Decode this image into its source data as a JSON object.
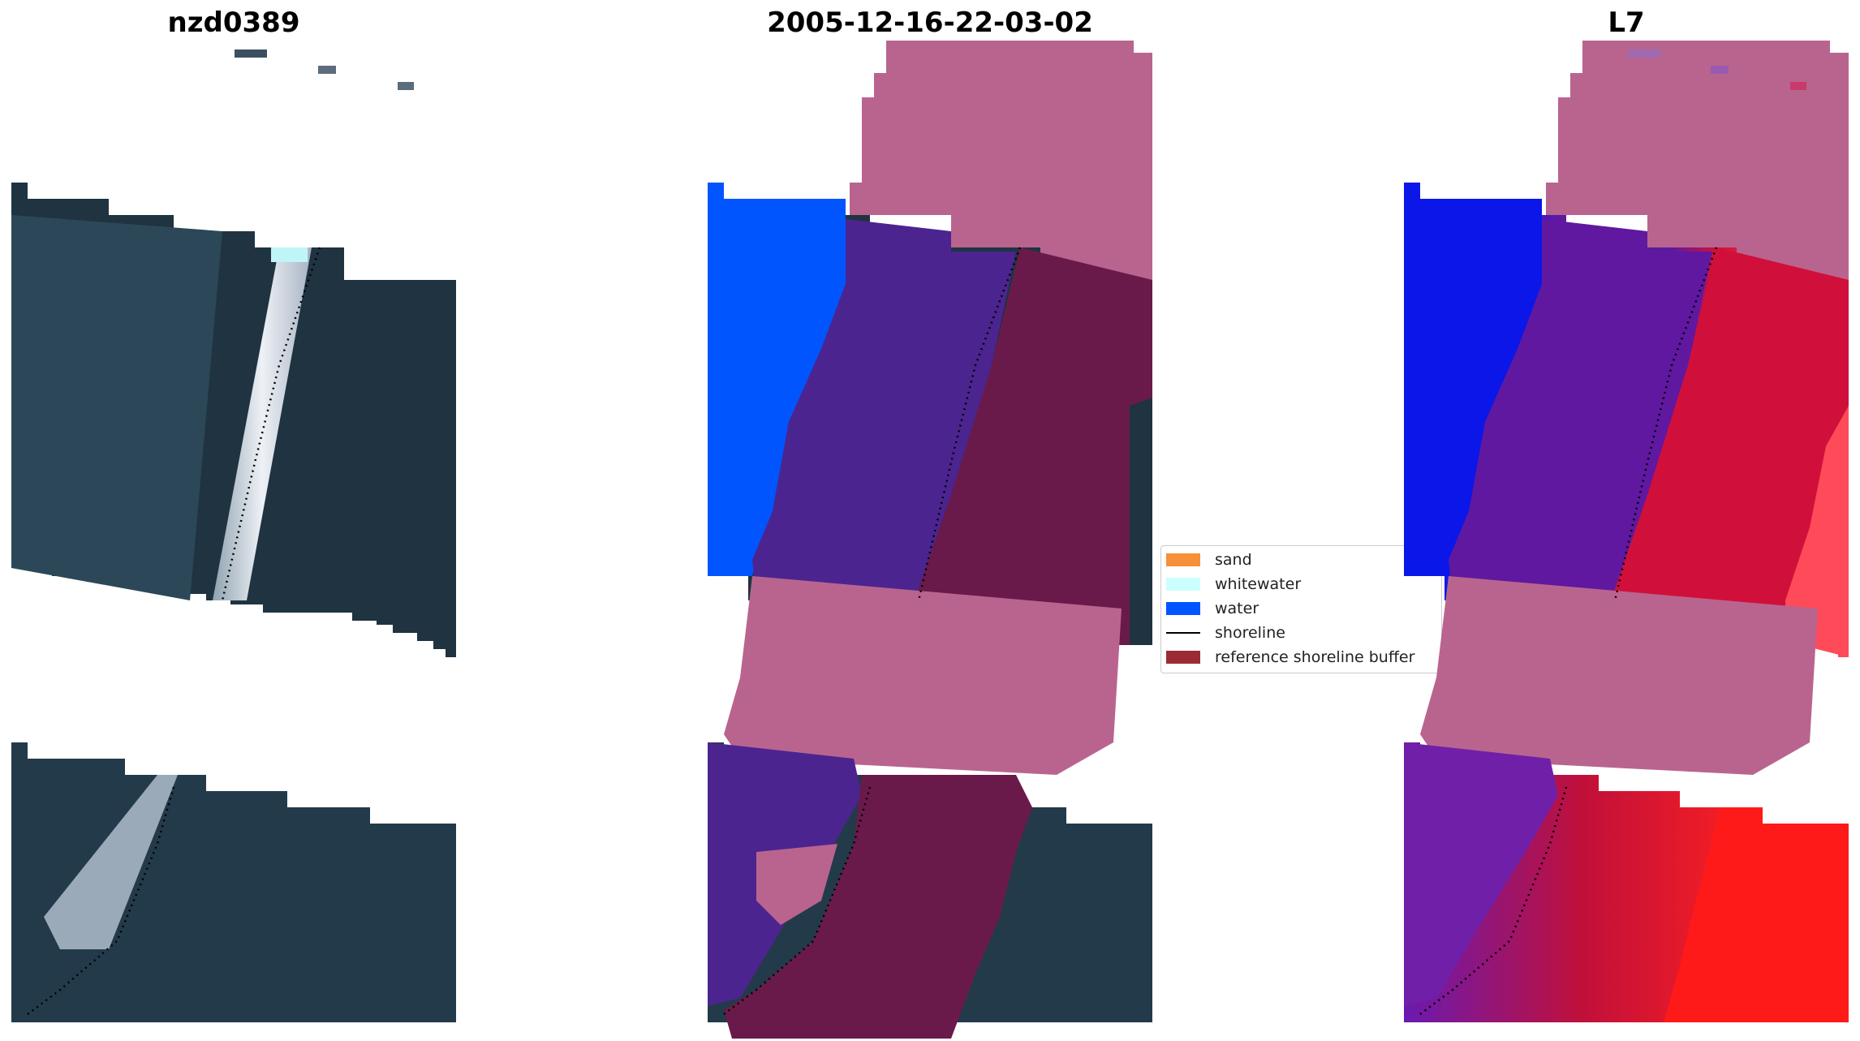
{
  "panels": {
    "left_title": "nzd0389",
    "middle_title": "2005-12-16-22-03-02",
    "right_title": "L7"
  },
  "legend": {
    "items": [
      {
        "label": "sand",
        "color": "#f79039"
      },
      {
        "label": "whitewater",
        "color": "#ccffff"
      },
      {
        "label": "water",
        "color": "#0055ff"
      },
      {
        "label": "shoreline",
        "color": "#000000",
        "kind": "line"
      },
      {
        "label": "reference shoreline buffer",
        "color": "#9b2c36"
      }
    ]
  },
  "colors": {
    "satellite_dark": "#1f3341",
    "satellite_water": "#2d4a58",
    "no_data_mask": "#b9648f",
    "classified_water": "#0055ff",
    "classified_purple": "#4c2490",
    "buffer_maroon": "#6a1a4a",
    "index_blue": "#0a17e8",
    "index_purple": "#6018a0",
    "index_red": "#d0103a"
  }
}
